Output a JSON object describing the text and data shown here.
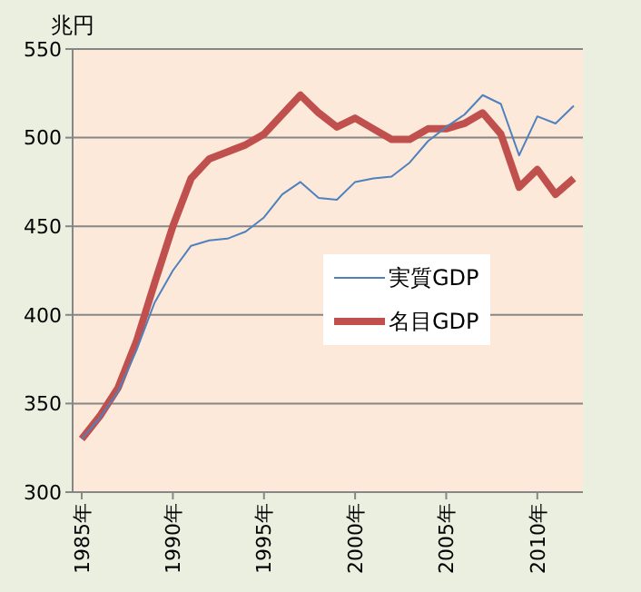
{
  "chart_data": {
    "type": "line",
    "ylabel": "兆円",
    "categories": [
      "1985年",
      null,
      null,
      null,
      null,
      "1990年",
      null,
      null,
      null,
      null,
      "1995年",
      null,
      null,
      null,
      null,
      "2000年",
      null,
      null,
      null,
      null,
      "2005年",
      null,
      null,
      null,
      null,
      "2010年",
      null,
      null
    ],
    "series": [
      {
        "name": "実質GDP",
        "color": "#4f81bd",
        "values": [
          330,
          342,
          357,
          380,
          407,
          425,
          439,
          442,
          443,
          447,
          455,
          468,
          475,
          466,
          465,
          475,
          477,
          478,
          486,
          498,
          506,
          513,
          524,
          519,
          490,
          512,
          508,
          518
        ]
      },
      {
        "name": "名目GDP",
        "color": "#c0504d",
        "values": [
          330,
          343,
          359,
          385,
          418,
          450,
          477,
          488,
          492,
          496,
          502,
          513,
          524,
          514,
          506,
          511,
          505,
          499,
          499,
          505,
          505,
          508,
          514,
          502,
          472,
          482,
          468,
          477
        ]
      }
    ],
    "ylim": [
      300,
      550
    ],
    "yticks": [
      300,
      350,
      400,
      450,
      500,
      550
    ],
    "grid": "y",
    "legend": "right"
  }
}
